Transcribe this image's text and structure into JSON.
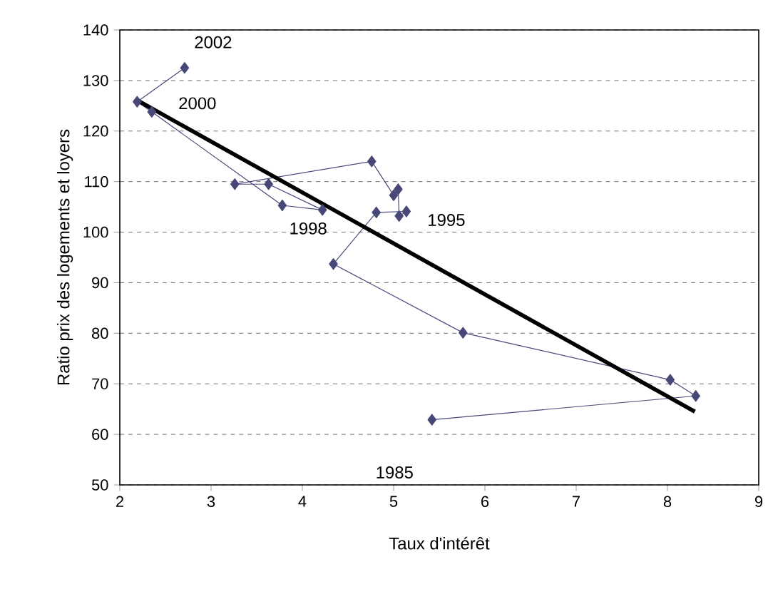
{
  "chart_data": {
    "type": "line",
    "xlabel": "Taux d'intérêt",
    "ylabel": "Ratio prix des logements et loyers",
    "xlim": [
      2,
      9
    ],
    "xticks": [
      2,
      3,
      4,
      5,
      6,
      7,
      8,
      9
    ],
    "ylim": [
      50,
      140
    ],
    "yticks": [
      50,
      60,
      70,
      80,
      90,
      100,
      110,
      120,
      130,
      140
    ],
    "grid": "y",
    "series": [
      {
        "type": "line",
        "color": "#484878",
        "marker": "diamond",
        "x": [
          5.42,
          8.31,
          8.03,
          5.76,
          4.34,
          4.81,
          5.14,
          5.06,
          5.05,
          5.0,
          4.76,
          3.26,
          3.63,
          4.22,
          3.78,
          2.35,
          2.19,
          2.71
        ],
        "values": [
          62.9,
          67.6,
          70.8,
          80.1,
          93.7,
          103.9,
          104.1,
          103.2,
          108.5,
          107.3,
          114.0,
          109.5,
          109.5,
          104.4,
          105.3,
          123.8,
          125.8,
          132.5
        ]
      },
      {
        "type": "line",
        "color": "#000000",
        "marker": "none",
        "x": [
          2.2,
          8.3
        ],
        "values": [
          126,
          64.5
        ]
      }
    ],
    "annotations": [
      {
        "text": "2002",
        "x": 2.71,
        "y": 132.5
      },
      {
        "text": "2000",
        "x": 2.35,
        "y": 123.8
      },
      {
        "text": "1998",
        "x": 4.22,
        "y": 104.4
      },
      {
        "text": "1995",
        "x": 5.14,
        "y": 104.1
      },
      "1985"
    ]
  }
}
